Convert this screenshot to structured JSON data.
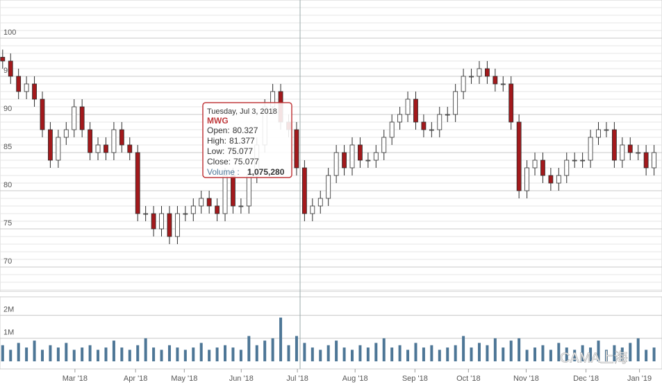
{
  "chart_data": {
    "type": "candlestick",
    "x": [
      1,
      4,
      7,
      10,
      13,
      16,
      19,
      22,
      25,
      28,
      31,
      34,
      37,
      40,
      43,
      46,
      49,
      52,
      55,
      58,
      61,
      64,
      67,
      70,
      73,
      76,
      79,
      82,
      85,
      88,
      91,
      94,
      97,
      100,
      103,
      106,
      109,
      112,
      115,
      118,
      121,
      124,
      127,
      130,
      133,
      136,
      139,
      142,
      145,
      148,
      151,
      154,
      157,
      160,
      163,
      166,
      169,
      172,
      175,
      178,
      181,
      184,
      187,
      190,
      193,
      196,
      199,
      202,
      205,
      208,
      211,
      214,
      217,
      220,
      223,
      226,
      229,
      232,
      235,
      238,
      241,
      244,
      247
    ],
    "open": [
      97.5,
      97,
      95,
      93,
      94,
      92,
      88,
      84,
      87,
      88,
      91,
      88,
      85,
      86,
      85,
      88,
      86,
      85,
      77,
      77,
      75,
      77,
      74,
      77,
      77,
      78,
      79,
      78,
      77,
      82,
      78,
      78,
      82,
      86,
      91,
      93,
      89,
      88,
      83,
      77,
      78,
      79,
      82,
      85,
      83,
      86,
      84,
      84,
      85,
      87,
      89,
      90,
      92,
      89,
      88,
      88,
      90,
      90,
      93,
      95,
      95,
      96,
      95,
      94,
      94,
      89,
      80,
      83,
      84,
      82,
      81,
      82,
      84,
      84,
      84,
      87,
      88,
      88,
      84,
      86,
      85,
      85,
      83
    ],
    "high": [
      98.5,
      98,
      96,
      95,
      95,
      93,
      89,
      88,
      89,
      92,
      92,
      89,
      87,
      87,
      89,
      89,
      87,
      86,
      78,
      78,
      78,
      78,
      78,
      78,
      79,
      80,
      80,
      79,
      83,
      83,
      79,
      83,
      87,
      92,
      94,
      94,
      90,
      89,
      84,
      79,
      80,
      83,
      86,
      86,
      87,
      87,
      85,
      86,
      88,
      90,
      91,
      93,
      93,
      90,
      89,
      91,
      91,
      94,
      96,
      96,
      97,
      97,
      96,
      95,
      95,
      90,
      84,
      85,
      85,
      83,
      83,
      85,
      85,
      85,
      88,
      89,
      89,
      89,
      87,
      87,
      86,
      86,
      86
    ],
    "low": [
      96,
      94,
      92,
      92,
      91,
      87,
      83,
      83,
      86,
      87,
      87,
      84,
      84,
      84,
      84,
      85,
      84,
      76,
      76,
      74,
      74,
      73,
      73,
      76,
      76,
      77,
      77,
      76,
      76,
      77,
      77,
      77,
      81,
      85,
      90,
      88,
      87,
      82,
      76,
      76,
      77,
      78,
      81,
      82,
      82,
      83,
      83,
      83,
      84,
      86,
      88,
      89,
      88,
      87,
      87,
      87,
      89,
      89,
      92,
      94,
      94,
      94,
      93,
      93,
      88,
      79,
      79,
      82,
      81,
      80,
      80,
      81,
      83,
      83,
      83,
      86,
      87,
      83,
      83,
      84,
      84,
      82,
      82
    ],
    "close": [
      97,
      95,
      93,
      94,
      92,
      88,
      84,
      87,
      88,
      91,
      88,
      85,
      86,
      85,
      88,
      86,
      85,
      77,
      77,
      75,
      77,
      74,
      77,
      77,
      78,
      79,
      78,
      77,
      82,
      78,
      78,
      82,
      86,
      91,
      93,
      89,
      88,
      83,
      77,
      78,
      79,
      82,
      85,
      83,
      86,
      84,
      84,
      85,
      87,
      89,
      90,
      92,
      89,
      88,
      88,
      90,
      90,
      93,
      95,
      95,
      96,
      95,
      94,
      94,
      89,
      80,
      83,
      84,
      82,
      81,
      82,
      84,
      84,
      84,
      87,
      88,
      88,
      84,
      86,
      85,
      85,
      83,
      85
    ],
    "volume": [
      700000,
      500000,
      800000,
      600000,
      900000,
      500000,
      700000,
      600000,
      800000,
      500000,
      600000,
      700000,
      500000,
      600000,
      900000,
      600000,
      500000,
      700000,
      1000000,
      600000,
      500000,
      700000,
      600000,
      500000,
      600000,
      800000,
      500000,
      600000,
      700000,
      600000,
      500000,
      1100000,
      700000,
      900000,
      1000000,
      1900000,
      700000,
      1100000,
      800000,
      600000,
      500000,
      700000,
      900000,
      600000,
      500000,
      700000,
      600000,
      800000,
      1000000,
      600000,
      700000,
      500000,
      800000,
      600000,
      700000,
      500000,
      600000,
      700000,
      1100000,
      600000,
      800000,
      700000,
      1000000,
      600000,
      900000,
      1000000,
      500000,
      600000,
      700000,
      500000,
      800000,
      600000,
      500000,
      700000,
      600000,
      900000,
      500000,
      700000,
      600000,
      800000,
      1000000,
      500000,
      600000
    ],
    "colors": {
      "up": "#ffffff",
      "down": "#a3191c",
      "outline": "#2b2b2b",
      "volume": "#4d7696"
    },
    "xlim": [
      0,
      250
    ],
    "xticks": [
      {
        "value": 28.3,
        "label": "Mar '18"
      },
      {
        "value": 51.2,
        "label": "Apr '18"
      },
      {
        "value": 69.6,
        "label": "May '18"
      },
      {
        "value": 91.1,
        "label": "Jun '18"
      },
      {
        "value": 112.3,
        "label": "Jul '18"
      },
      {
        "value": 134.1,
        "label": "Aug '18"
      },
      {
        "value": 156.7,
        "label": "Sep '18"
      },
      {
        "value": 176.9,
        "label": "Oct '18"
      },
      {
        "value": 198.7,
        "label": "Nov '18"
      },
      {
        "value": 221.3,
        "label": "Dec '18"
      },
      {
        "value": 241.5,
        "label": "Jan '19"
      }
    ],
    "ylim": [
      67,
      105
    ],
    "yticks": [
      70,
      75,
      80,
      85,
      90,
      95,
      100
    ],
    "y2lim": [
      0,
      2800000
    ],
    "y2ticks": [
      {
        "value": 1000000,
        "label": "1M"
      },
      {
        "value": 2000000,
        "label": "2M"
      }
    ],
    "grid": true,
    "tooltip": {
      "date": "Tuesday, Jul 3, 2018",
      "symbol": "MWG",
      "rows": [
        {
          "label": "Open:",
          "value": 80.327
        },
        {
          "label": "High:",
          "value": 81.377
        },
        {
          "label": "Low:",
          "value": 75.077
        },
        {
          "label": "Close:",
          "value": 75.077
        }
      ],
      "volume": {
        "label": "Volume :",
        "value": 1075280,
        "value_label": "1,075,280"
      }
    },
    "watermark": "CAMA上海"
  }
}
